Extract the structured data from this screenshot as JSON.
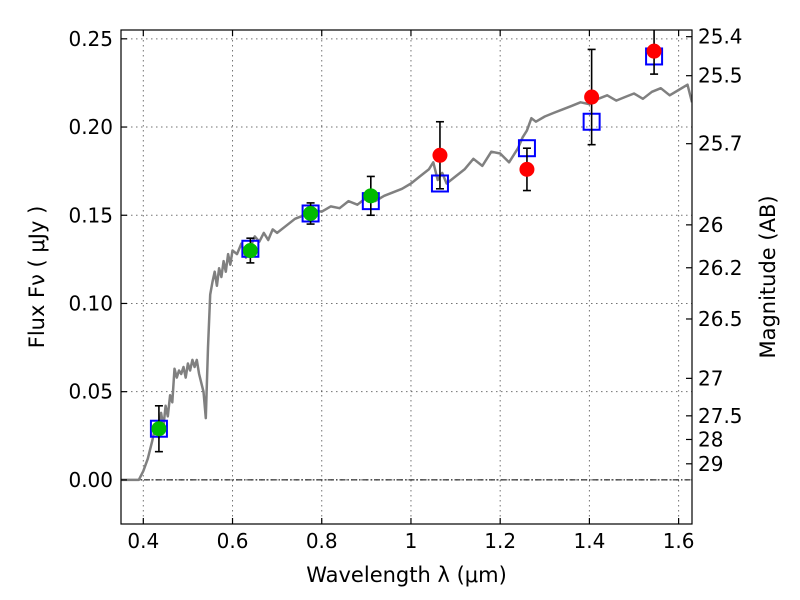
{
  "chart_data": {
    "type": "scatter",
    "xlabel": "Wavelength  λ (μm)",
    "ylabel": "Flux  Fν  ( μJy )",
    "ylabel_right": "Magnitude (AB)",
    "xlim": [
      0.35,
      1.63
    ],
    "ylim": [
      -0.025,
      0.255
    ],
    "grid": true,
    "x_ticks": [
      0.4,
      0.6,
      0.8,
      1.0,
      1.2,
      1.4,
      1.6
    ],
    "x_tick_labels": [
      "0.4",
      "0.6",
      "0.8",
      "1",
      "1.2",
      "1.4",
      "1.6"
    ],
    "y_ticks": [
      0.0,
      0.05,
      0.1,
      0.15,
      0.2,
      0.25
    ],
    "y_tick_labels": [
      "0.00",
      "0.05",
      "0.10",
      "0.15",
      "0.20",
      "0.25"
    ],
    "right_ticks": [
      {
        "mag": 25.4,
        "label": "25.4"
      },
      {
        "mag": 25.5,
        "label": "25.5"
      },
      {
        "mag": 25.7,
        "label": "25.7"
      },
      {
        "mag": 26,
        "label": "26"
      },
      {
        "mag": 26.2,
        "label": "26.2"
      },
      {
        "mag": 26.5,
        "label": "26.5"
      },
      {
        "mag": 27,
        "label": "27"
      },
      {
        "mag": 27.5,
        "label": "27.5"
      },
      {
        "mag": 28,
        "label": "28"
      },
      {
        "mag": 29,
        "label": "29"
      }
    ],
    "series": [
      {
        "kind": "line",
        "color": "#808080",
        "x": [
          0.35,
          0.39,
          0.4,
          0.41,
          0.42,
          0.425,
          0.43,
          0.435,
          0.44,
          0.445,
          0.45,
          0.455,
          0.46,
          0.465,
          0.47,
          0.475,
          0.48,
          0.485,
          0.49,
          0.495,
          0.5,
          0.505,
          0.51,
          0.515,
          0.52,
          0.525,
          0.53,
          0.535,
          0.54,
          0.545,
          0.55,
          0.555,
          0.56,
          0.565,
          0.57,
          0.575,
          0.58,
          0.585,
          0.59,
          0.595,
          0.6,
          0.61,
          0.62,
          0.63,
          0.64,
          0.65,
          0.66,
          0.67,
          0.68,
          0.69,
          0.7,
          0.72,
          0.74,
          0.76,
          0.78,
          0.8,
          0.82,
          0.84,
          0.86,
          0.88,
          0.9,
          0.92,
          0.94,
          0.96,
          0.98,
          1.0,
          1.02,
          1.04,
          1.05,
          1.06,
          1.07,
          1.08,
          1.1,
          1.12,
          1.14,
          1.16,
          1.18,
          1.2,
          1.22,
          1.24,
          1.25,
          1.26,
          1.27,
          1.28,
          1.3,
          1.32,
          1.34,
          1.36,
          1.38,
          1.4,
          1.42,
          1.44,
          1.46,
          1.48,
          1.5,
          1.52,
          1.54,
          1.56,
          1.58,
          1.6,
          1.62,
          1.63
        ],
        "y": [
          0.0,
          0.0,
          0.005,
          0.012,
          0.022,
          0.028,
          0.032,
          0.024,
          0.038,
          0.03,
          0.042,
          0.036,
          0.048,
          0.044,
          0.063,
          0.058,
          0.062,
          0.06,
          0.064,
          0.058,
          0.066,
          0.062,
          0.068,
          0.064,
          0.068,
          0.06,
          0.055,
          0.05,
          0.035,
          0.075,
          0.105,
          0.112,
          0.118,
          0.11,
          0.12,
          0.115,
          0.124,
          0.118,
          0.128,
          0.122,
          0.13,
          0.128,
          0.134,
          0.126,
          0.132,
          0.138,
          0.135,
          0.14,
          0.136,
          0.142,
          0.14,
          0.144,
          0.148,
          0.15,
          0.153,
          0.152,
          0.155,
          0.154,
          0.158,
          0.156,
          0.16,
          0.158,
          0.161,
          0.163,
          0.165,
          0.168,
          0.172,
          0.176,
          0.18,
          0.17,
          0.174,
          0.168,
          0.172,
          0.176,
          0.182,
          0.178,
          0.186,
          0.185,
          0.18,
          0.188,
          0.194,
          0.198,
          0.205,
          0.203,
          0.206,
          0.208,
          0.21,
          0.212,
          0.214,
          0.213,
          0.216,
          0.218,
          0.215,
          0.217,
          0.219,
          0.216,
          0.22,
          0.222,
          0.218,
          0.221,
          0.224,
          0.214
        ]
      },
      {
        "kind": "open-square",
        "color": "#0000ff",
        "x": [
          0.435,
          0.64,
          0.775,
          0.91,
          1.065,
          1.26,
          1.405,
          1.545
        ],
        "y": [
          0.029,
          0.131,
          0.151,
          0.158,
          0.168,
          0.188,
          0.203,
          0.24
        ]
      },
      {
        "kind": "filled-circle",
        "color": "#00bb00",
        "x": [
          0.435,
          0.64,
          0.775,
          0.91
        ],
        "y": [
          0.029,
          0.13,
          0.151,
          0.161
        ],
        "yerr": [
          0.013,
          0.007,
          0.006,
          0.011
        ]
      },
      {
        "kind": "filled-circle",
        "color": "#ff0000",
        "x": [
          1.065,
          1.26,
          1.405,
          1.545
        ],
        "y": [
          0.184,
          0.176,
          0.217,
          0.243
        ],
        "yerr": [
          0.019,
          0.012,
          0.027,
          0.013
        ]
      }
    ]
  }
}
